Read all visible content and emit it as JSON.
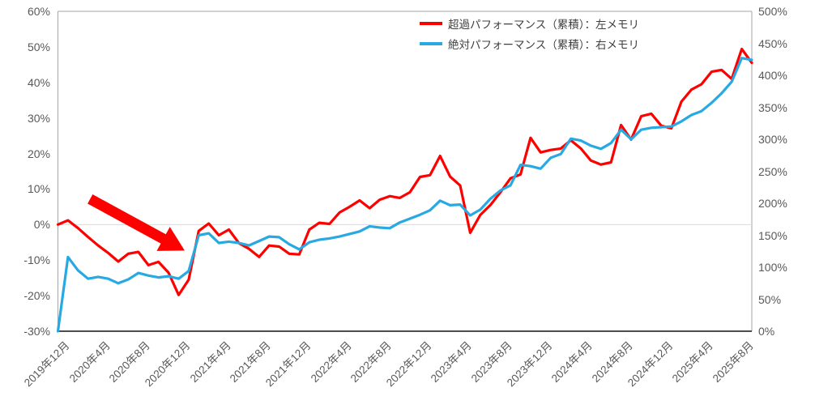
{
  "chart_data": {
    "type": "line",
    "title": "",
    "legend_position": "top-right",
    "grid": "zero-line-only",
    "months": [
      "2019-12",
      "2020-01",
      "2020-02",
      "2020-03",
      "2020-04",
      "2020-05",
      "2020-06",
      "2020-07",
      "2020-08",
      "2020-09",
      "2020-10",
      "2020-11",
      "2020-12",
      "2021-01",
      "2021-02",
      "2021-03",
      "2021-04",
      "2021-05",
      "2021-06",
      "2021-07",
      "2021-08",
      "2021-09",
      "2021-10",
      "2021-11",
      "2021-12",
      "2022-01",
      "2022-02",
      "2022-03",
      "2022-04",
      "2022-05",
      "2022-06",
      "2022-07",
      "2022-08",
      "2022-09",
      "2022-10",
      "2022-11",
      "2022-12",
      "2023-01",
      "2023-02",
      "2023-03",
      "2023-04",
      "2023-05",
      "2023-06",
      "2023-07",
      "2023-08",
      "2023-09",
      "2023-10",
      "2023-11",
      "2023-12",
      "2024-01",
      "2024-02",
      "2024-03",
      "2024-04",
      "2024-05",
      "2024-06",
      "2024-07",
      "2024-08",
      "2024-09",
      "2024-10",
      "2024-11",
      "2024-12",
      "2025-01",
      "2025-02",
      "2025-03",
      "2025-04",
      "2025-05",
      "2025-06",
      "2025-07",
      "2025-08",
      "2025-09"
    ],
    "x_ticks": [
      {
        "index": 0,
        "label": "2019年12月"
      },
      {
        "index": 4,
        "label": "2020年4月"
      },
      {
        "index": 8,
        "label": "2020年8月"
      },
      {
        "index": 12,
        "label": "2020年12月"
      },
      {
        "index": 16,
        "label": "2021年4月"
      },
      {
        "index": 20,
        "label": "2021年8月"
      },
      {
        "index": 24,
        "label": "2021年12月"
      },
      {
        "index": 28,
        "label": "2022年4月"
      },
      {
        "index": 32,
        "label": "2022年8月"
      },
      {
        "index": 36,
        "label": "2022年12月"
      },
      {
        "index": 40,
        "label": "2023年4月"
      },
      {
        "index": 44,
        "label": "2023年8月"
      },
      {
        "index": 48,
        "label": "2023年12月"
      },
      {
        "index": 52,
        "label": "2024年4月"
      },
      {
        "index": 56,
        "label": "2024年8月"
      },
      {
        "index": 60,
        "label": "2024年12月"
      },
      {
        "index": 64,
        "label": "2025年4月"
      },
      {
        "index": 68,
        "label": "2025年8月"
      }
    ],
    "left_axis": {
      "min": -30,
      "max": 60,
      "step": 10,
      "tick_values": [
        60,
        50,
        40,
        30,
        20,
        10,
        0,
        -10,
        -20,
        -30
      ],
      "tick_labels": [
        "60%",
        "50%",
        "40%",
        "30%",
        "20%",
        "10%",
        "0%",
        "-10%",
        "-20%",
        "-30%"
      ]
    },
    "right_axis": {
      "min": 0,
      "max": 500,
      "step": 50,
      "tick_values": [
        500,
        450,
        400,
        350,
        300,
        250,
        200,
        150,
        100,
        50,
        0
      ],
      "tick_labels": [
        "500%",
        "450%",
        "400%",
        "350%",
        "300%",
        "250%",
        "200%",
        "150%",
        "100%",
        "50%",
        "0%"
      ]
    },
    "series": [
      {
        "name": "超過パフォーマンス（累積）：左メモリ",
        "axis": "left",
        "color": "#FF0000",
        "values": [
          0,
          1.2,
          -1,
          -3.5,
          -5.9,
          -8,
          -10.4,
          -8.2,
          -7.7,
          -11.4,
          -10.5,
          -13.5,
          -19.8,
          -15.5,
          -1.8,
          0.3,
          -3,
          -1.4,
          -5.2,
          -6.8,
          -9.1,
          -5.9,
          -6.2,
          -8.2,
          -8.4,
          -1.4,
          0.5,
          0.2,
          3.4,
          5,
          6.8,
          4.6,
          7,
          8,
          7.5,
          9.1,
          13.4,
          13.9,
          19.3,
          13.5,
          11,
          -2.3,
          2.7,
          5.5,
          9.1,
          13,
          14.1,
          24.4,
          20.3,
          21,
          21.4,
          23.7,
          21.4,
          18,
          16.9,
          17.5,
          28,
          23.9,
          30.5,
          31.2,
          27.8,
          27.1,
          34.6,
          38,
          39.5,
          43,
          43.5,
          41,
          49.4,
          45.5
        ]
      },
      {
        "name": "絶対パフォーマンス（累積）：右メモリ",
        "axis": "right",
        "color": "#29A9E1",
        "values": [
          0,
          116,
          95,
          82,
          85,
          82,
          75,
          81,
          91,
          87,
          84,
          86,
          82,
          94,
          150,
          153,
          138,
          140,
          138,
          134,
          141,
          148,
          147,
          136,
          128,
          139,
          143,
          145,
          148,
          152,
          156,
          164,
          162,
          161,
          170,
          176,
          182,
          189,
          204,
          197,
          198,
          181,
          190,
          207,
          220,
          228,
          260,
          258,
          254,
          271,
          277,
          301,
          298,
          290,
          285,
          294,
          315,
          300,
          315,
          318,
          319,
          320,
          328,
          338,
          344,
          357,
          372,
          390,
          427,
          424
        ]
      }
    ],
    "annotation": {
      "shape": "arrow",
      "color": "#FF0000",
      "from": {
        "index": 3.2,
        "left_value": 7.2
      },
      "to": {
        "index": 12.6,
        "left_value": -7.3
      },
      "shaft_width": 13,
      "head_length": 30,
      "head_width": 34
    }
  }
}
